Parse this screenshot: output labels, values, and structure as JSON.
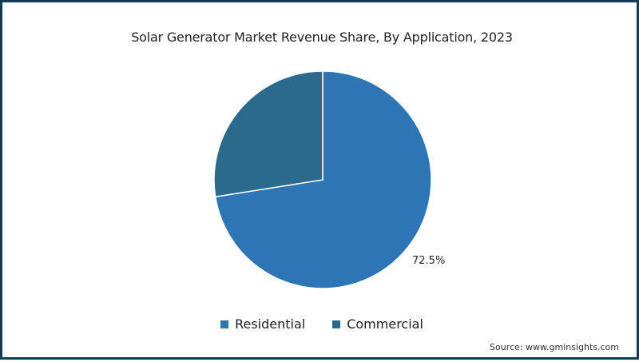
{
  "chart_data": {
    "type": "pie",
    "title": "Solar Generator Market Revenue Share, By Application, 2023",
    "categories": [
      "Residential",
      "Commercial"
    ],
    "values": [
      72.5,
      27.5
    ],
    "unit": "%",
    "colors": [
      "#2e75b6",
      "#2c6a8d"
    ],
    "data_labels": [
      {
        "category": "Residential",
        "text": "72.5%"
      }
    ],
    "legend_position": "bottom",
    "start_angle_deg": 0,
    "direction": "clockwise"
  },
  "title": "Solar Generator Market Revenue Share, By Application, 2023",
  "label_residential": "72.5%",
  "legend": [
    {
      "label": "Residential",
      "color": "#2e75b6"
    },
    {
      "label": "Commercial",
      "color": "#2c6a8d"
    }
  ],
  "source": "Source: www.gminsights.com",
  "frame_color": "#0f3d57"
}
